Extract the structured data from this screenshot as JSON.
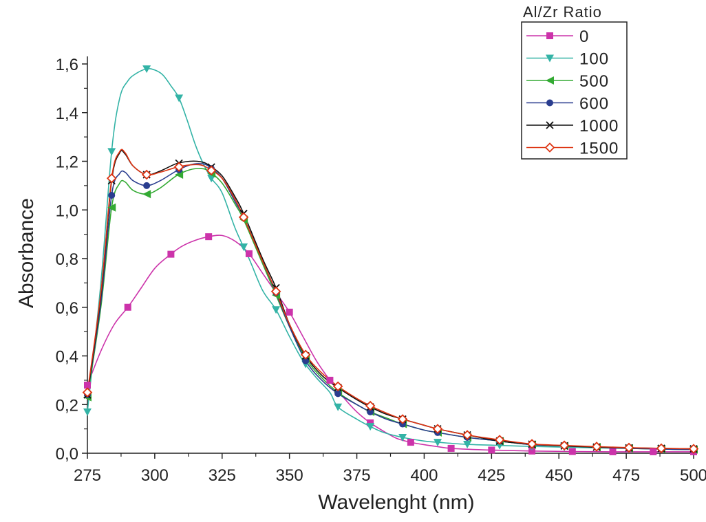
{
  "chart_data": {
    "type": "line",
    "xlabel": "Wavelenght (nm)",
    "ylabel": "Absorbance",
    "xlim": [
      275,
      500
    ],
    "ylim": [
      0.0,
      1.7
    ],
    "x_ticks": [
      "275",
      "300",
      "325",
      "350",
      "375",
      "400",
      "425",
      "450",
      "475",
      "500"
    ],
    "y_ticks": [
      "0,0",
      "0,2",
      "0,4",
      "0,6",
      "0,8",
      "1,0",
      "1,2",
      "1,4",
      "1,6"
    ],
    "legend_title": "Al/Zr Ratio",
    "legend_position": "top-right",
    "grid": false,
    "series": [
      {
        "name": "0",
        "color": "#cc33aa",
        "marker": "square",
        "points": [
          [
            275,
            0.28
          ],
          [
            280,
            0.42
          ],
          [
            285,
            0.53
          ],
          [
            290,
            0.6
          ],
          [
            295,
            0.68
          ],
          [
            300,
            0.76
          ],
          [
            305,
            0.81
          ],
          [
            310,
            0.85
          ],
          [
            315,
            0.875
          ],
          [
            320,
            0.89
          ],
          [
            325,
            0.895
          ],
          [
            330,
            0.87
          ],
          [
            335,
            0.82
          ],
          [
            340,
            0.74
          ],
          [
            345,
            0.66
          ],
          [
            350,
            0.58
          ],
          [
            355,
            0.48
          ],
          [
            360,
            0.38
          ],
          [
            365,
            0.3
          ],
          [
            370,
            0.23
          ],
          [
            375,
            0.17
          ],
          [
            380,
            0.125
          ],
          [
            385,
            0.09
          ],
          [
            390,
            0.06
          ],
          [
            395,
            0.045
          ],
          [
            400,
            0.035
          ],
          [
            405,
            0.027
          ],
          [
            410,
            0.02
          ],
          [
            425,
            0.013
          ],
          [
            440,
            0.009
          ],
          [
            455,
            0.007
          ],
          [
            470,
            0.006
          ],
          [
            485,
            0.006
          ],
          [
            500,
            0.006
          ]
        ],
        "markers_x": [
          275,
          290,
          306,
          320,
          335,
          350,
          365,
          380,
          395,
          410,
          425,
          440,
          455,
          470,
          485,
          500
        ]
      },
      {
        "name": "100",
        "color": "#33b3a6",
        "marker": "triangle-down",
        "points": [
          [
            275,
            0.17
          ],
          [
            280,
            0.7
          ],
          [
            284,
            1.24
          ],
          [
            287,
            1.46
          ],
          [
            290,
            1.53
          ],
          [
            293,
            1.56
          ],
          [
            297,
            1.58
          ],
          [
            300,
            1.575
          ],
          [
            303,
            1.555
          ],
          [
            306,
            1.51
          ],
          [
            309,
            1.46
          ],
          [
            312,
            1.37
          ],
          [
            315,
            1.27
          ],
          [
            318,
            1.19
          ],
          [
            321,
            1.13
          ],
          [
            325,
            1.07
          ],
          [
            330,
            0.92
          ],
          [
            335,
            0.8
          ],
          [
            340,
            0.67
          ],
          [
            345,
            0.59
          ],
          [
            350,
            0.48
          ],
          [
            355,
            0.38
          ],
          [
            360,
            0.31
          ],
          [
            365,
            0.25
          ],
          [
            368,
            0.19
          ],
          [
            375,
            0.14
          ],
          [
            380,
            0.11
          ],
          [
            385,
            0.085
          ],
          [
            392,
            0.065
          ],
          [
            400,
            0.05
          ],
          [
            405,
            0.045
          ],
          [
            415,
            0.037
          ],
          [
            428,
            0.032
          ],
          [
            440,
            0.028
          ],
          [
            452,
            0.025
          ],
          [
            464,
            0.022
          ],
          [
            476,
            0.02
          ],
          [
            488,
            0.017
          ],
          [
            500,
            0.015
          ]
        ],
        "markers_x": [
          275,
          284,
          297,
          309,
          321,
          333,
          345,
          356,
          368,
          380,
          392,
          405,
          416,
          428,
          440,
          452,
          464,
          476,
          488,
          500
        ]
      },
      {
        "name": "500",
        "color": "#33aa33",
        "marker": "triangle-left",
        "points": [
          [
            275,
            0.23
          ],
          [
            280,
            0.6
          ],
          [
            284,
            1.01
          ],
          [
            287,
            1.11
          ],
          [
            289,
            1.115
          ],
          [
            292,
            1.08
          ],
          [
            297,
            1.065
          ],
          [
            302,
            1.09
          ],
          [
            308,
            1.14
          ],
          [
            313,
            1.165
          ],
          [
            317,
            1.17
          ],
          [
            320,
            1.16
          ],
          [
            325,
            1.11
          ],
          [
            330,
            1.02
          ],
          [
            333,
            0.96
          ],
          [
            340,
            0.78
          ],
          [
            345,
            0.65
          ],
          [
            350,
            0.52
          ],
          [
            356,
            0.39
          ],
          [
            362,
            0.31
          ],
          [
            368,
            0.25
          ],
          [
            375,
            0.2
          ],
          [
            380,
            0.17
          ],
          [
            386,
            0.145
          ],
          [
            392,
            0.12
          ],
          [
            400,
            0.095
          ],
          [
            405,
            0.085
          ],
          [
            416,
            0.065
          ],
          [
            428,
            0.05
          ],
          [
            440,
            0.035
          ],
          [
            452,
            0.03
          ],
          [
            464,
            0.025
          ],
          [
            476,
            0.02
          ],
          [
            488,
            0.017
          ],
          [
            500,
            0.015
          ]
        ],
        "markers_x": [
          275,
          284,
          297,
          309,
          321,
          333,
          345,
          356,
          368,
          380,
          392,
          405,
          416,
          428,
          440,
          452,
          464,
          476,
          488,
          500
        ]
      },
      {
        "name": "600",
        "color": "#2a3d8f",
        "marker": "circle",
        "points": [
          [
            275,
            0.24
          ],
          [
            280,
            0.62
          ],
          [
            284,
            1.06
          ],
          [
            287,
            1.15
          ],
          [
            289,
            1.155
          ],
          [
            292,
            1.12
          ],
          [
            297,
            1.1
          ],
          [
            302,
            1.12
          ],
          [
            308,
            1.16
          ],
          [
            313,
            1.185
          ],
          [
            317,
            1.19
          ],
          [
            320,
            1.18
          ],
          [
            325,
            1.13
          ],
          [
            330,
            1.03
          ],
          [
            333,
            0.97
          ],
          [
            340,
            0.79
          ],
          [
            345,
            0.66
          ],
          [
            350,
            0.52
          ],
          [
            356,
            0.38
          ],
          [
            362,
            0.3
          ],
          [
            368,
            0.245
          ],
          [
            375,
            0.2
          ],
          [
            380,
            0.17
          ],
          [
            386,
            0.14
          ],
          [
            392,
            0.12
          ],
          [
            400,
            0.095
          ],
          [
            405,
            0.085
          ],
          [
            416,
            0.065
          ],
          [
            428,
            0.05
          ],
          [
            440,
            0.035
          ],
          [
            452,
            0.03
          ],
          [
            464,
            0.025
          ],
          [
            476,
            0.02
          ],
          [
            488,
            0.017
          ],
          [
            500,
            0.015
          ]
        ],
        "markers_x": [
          275,
          284,
          297,
          309,
          321,
          333,
          345,
          356,
          368,
          380,
          392,
          405,
          416,
          428,
          440,
          452,
          464,
          476,
          488,
          500
        ]
      },
      {
        "name": "1000",
        "color": "#111111",
        "marker": "x",
        "points": [
          [
            275,
            0.24
          ],
          [
            280,
            0.65
          ],
          [
            284,
            1.12
          ],
          [
            287,
            1.235
          ],
          [
            289,
            1.23
          ],
          [
            292,
            1.18
          ],
          [
            297,
            1.145
          ],
          [
            302,
            1.16
          ],
          [
            308,
            1.19
          ],
          [
            313,
            1.2
          ],
          [
            317,
            1.198
          ],
          [
            320,
            1.185
          ],
          [
            325,
            1.14
          ],
          [
            330,
            1.05
          ],
          [
            333,
            0.985
          ],
          [
            340,
            0.8
          ],
          [
            345,
            0.68
          ],
          [
            350,
            0.53
          ],
          [
            356,
            0.4
          ],
          [
            362,
            0.32
          ],
          [
            368,
            0.27
          ],
          [
            375,
            0.22
          ],
          [
            380,
            0.19
          ],
          [
            386,
            0.16
          ],
          [
            392,
            0.14
          ],
          [
            400,
            0.115
          ],
          [
            405,
            0.1
          ],
          [
            416,
            0.075
          ],
          [
            428,
            0.05
          ],
          [
            440,
            0.037
          ],
          [
            452,
            0.03
          ],
          [
            464,
            0.025
          ],
          [
            476,
            0.022
          ],
          [
            488,
            0.02
          ],
          [
            500,
            0.018
          ]
        ],
        "markers_x": [
          275,
          284,
          297,
          309,
          321,
          333,
          345,
          356,
          368,
          380,
          392,
          405,
          416,
          428,
          440,
          452,
          464,
          476,
          488,
          500
        ]
      },
      {
        "name": "1500",
        "color": "#dd3311",
        "marker": "diamond-open",
        "points": [
          [
            275,
            0.25
          ],
          [
            280,
            0.66
          ],
          [
            284,
            1.13
          ],
          [
            287,
            1.24
          ],
          [
            289,
            1.235
          ],
          [
            292,
            1.18
          ],
          [
            297,
            1.145
          ],
          [
            302,
            1.155
          ],
          [
            308,
            1.175
          ],
          [
            313,
            1.185
          ],
          [
            317,
            1.185
          ],
          [
            320,
            1.17
          ],
          [
            325,
            1.13
          ],
          [
            330,
            1.04
          ],
          [
            333,
            0.97
          ],
          [
            340,
            0.79
          ],
          [
            345,
            0.665
          ],
          [
            350,
            0.53
          ],
          [
            356,
            0.405
          ],
          [
            362,
            0.33
          ],
          [
            368,
            0.275
          ],
          [
            375,
            0.225
          ],
          [
            380,
            0.195
          ],
          [
            386,
            0.165
          ],
          [
            392,
            0.14
          ],
          [
            400,
            0.115
          ],
          [
            405,
            0.1
          ],
          [
            416,
            0.075
          ],
          [
            428,
            0.055
          ],
          [
            440,
            0.038
          ],
          [
            452,
            0.032
          ],
          [
            464,
            0.027
          ],
          [
            476,
            0.023
          ],
          [
            488,
            0.02
          ],
          [
            500,
            0.018
          ]
        ],
        "markers_x": [
          275,
          284,
          297,
          309,
          321,
          333,
          345,
          356,
          368,
          380,
          392,
          405,
          416,
          428,
          440,
          452,
          464,
          476,
          488,
          500
        ]
      }
    ]
  }
}
